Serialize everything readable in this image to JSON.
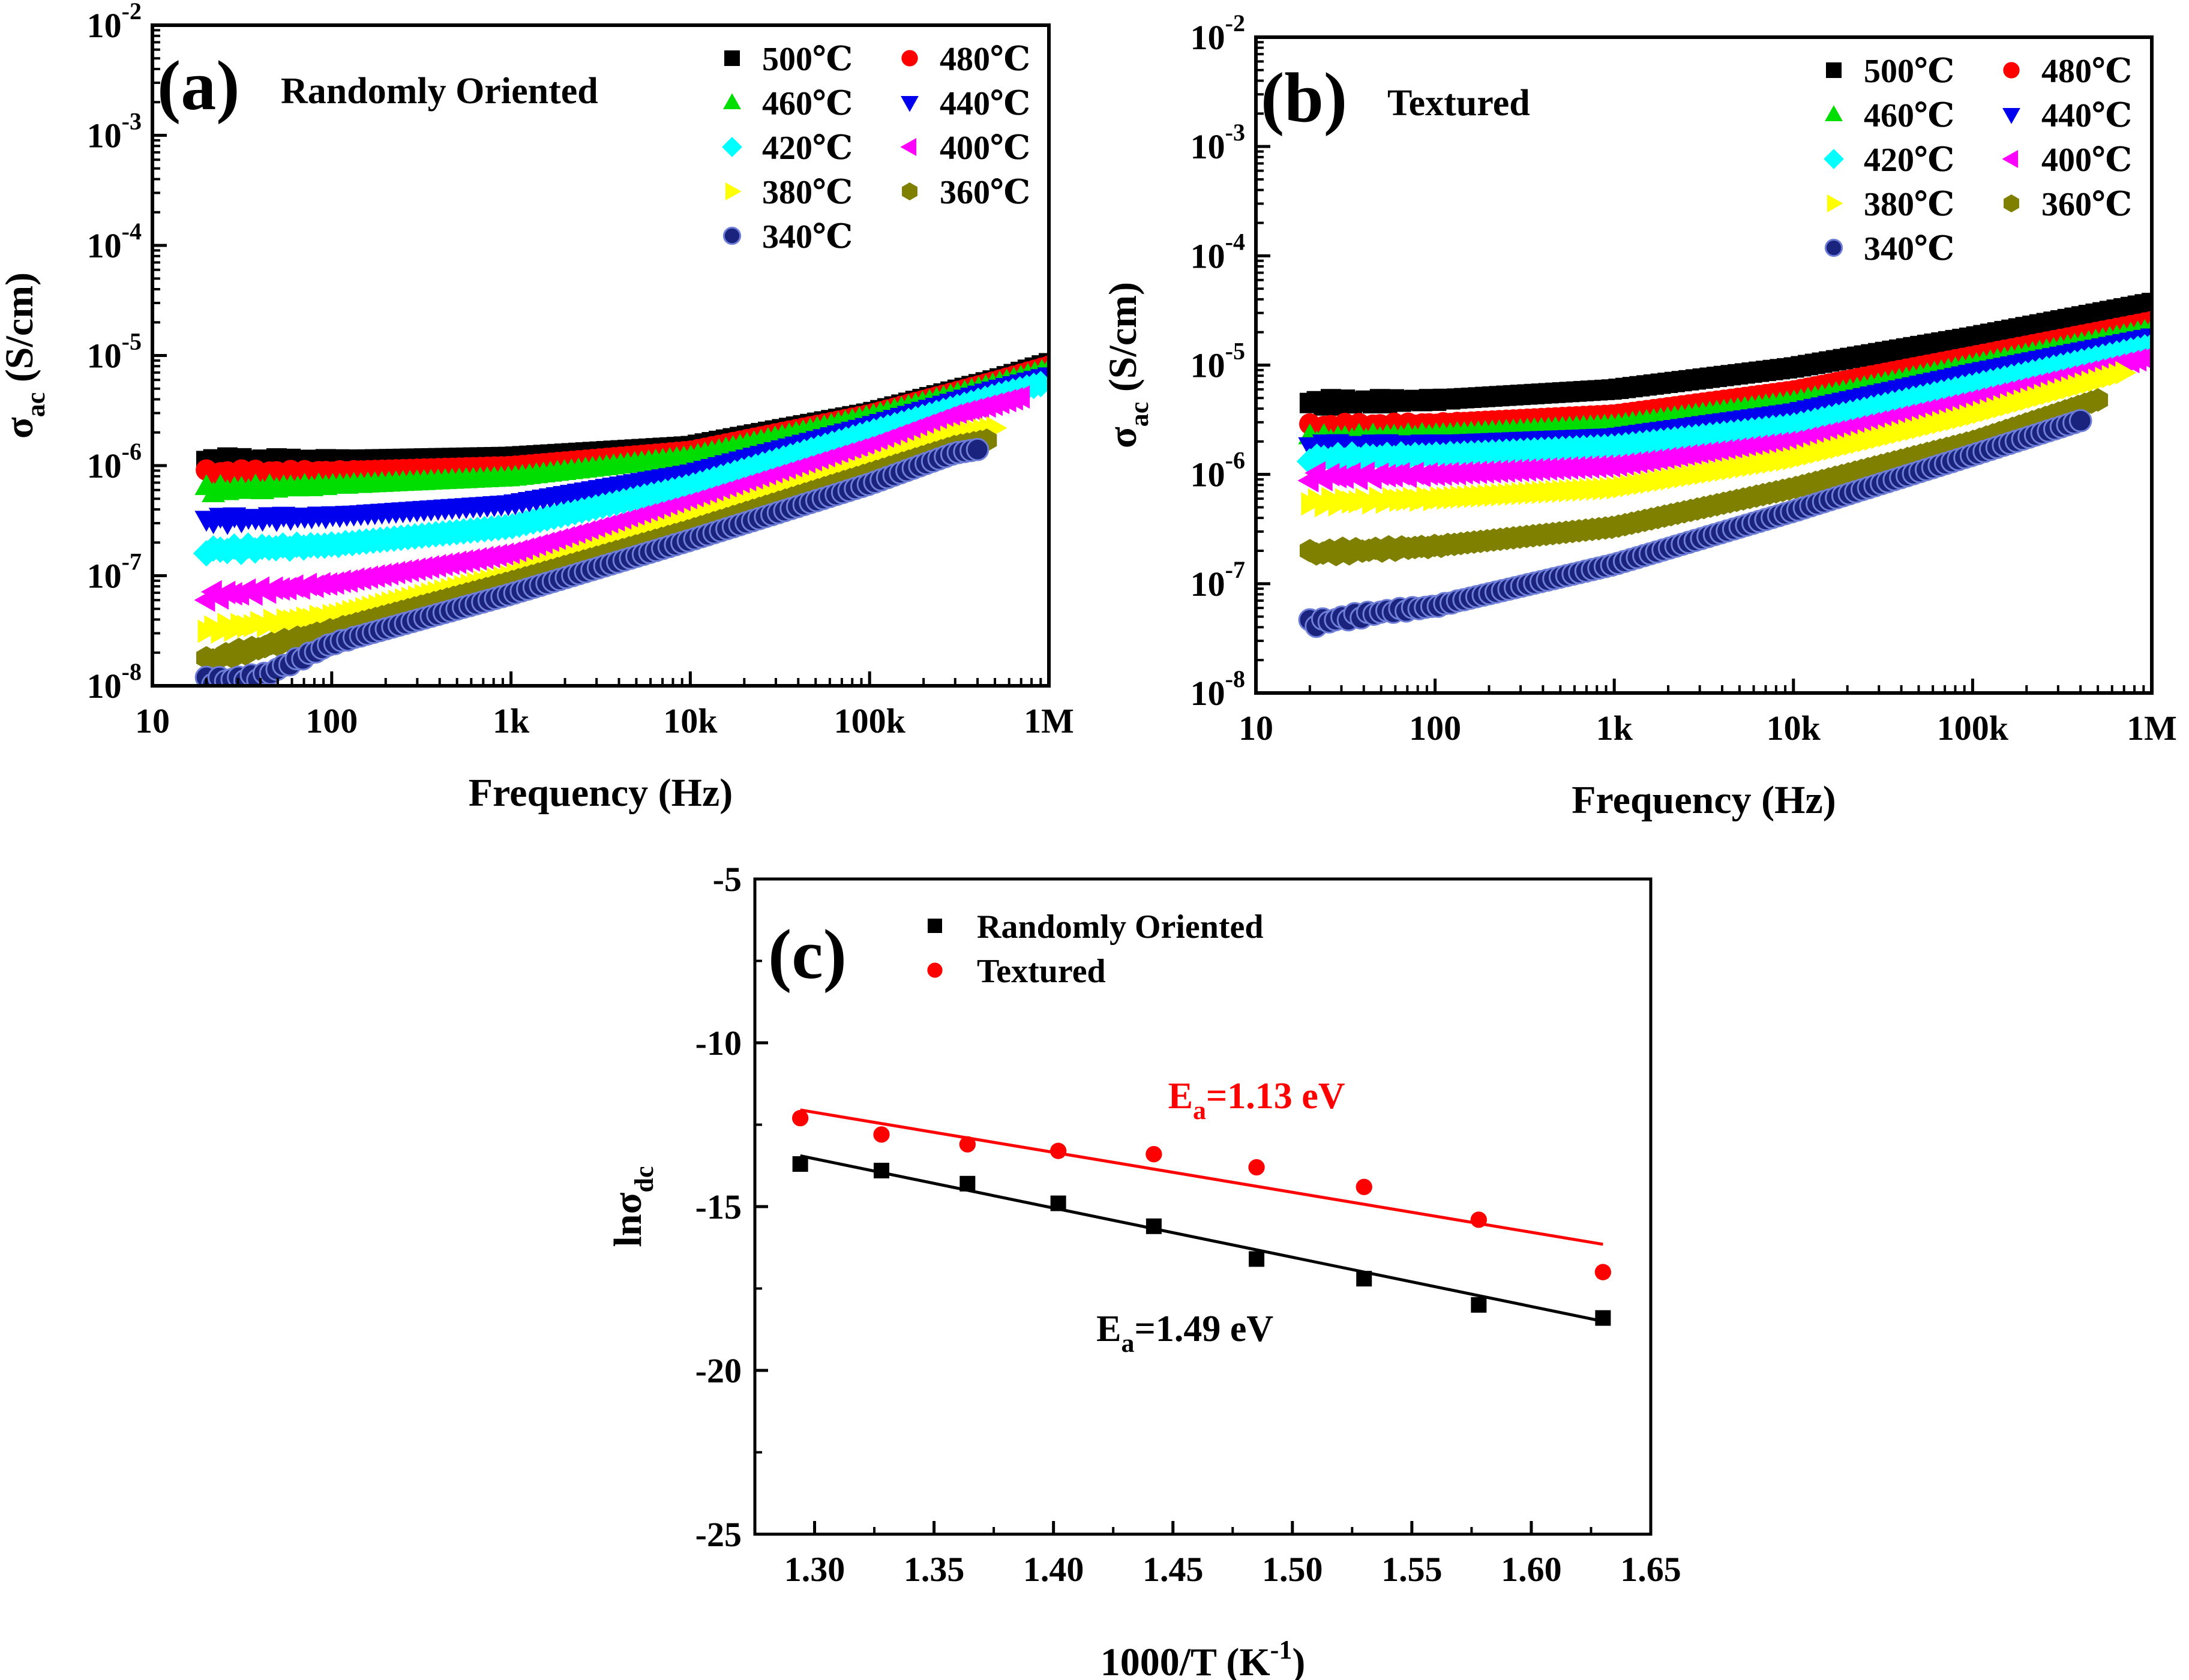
{
  "chart_data": [
    {
      "panel": "a",
      "type": "scatter",
      "panel_label": "(a)",
      "title": "Randomly Oriented",
      "xlabel": "Frequency (Hz)",
      "ylabel": "σac (S/cm)",
      "ylabel_main": "σ",
      "ylabel_sub": "ac",
      "ylabel_rest": " (S/cm)",
      "x_scale": "log",
      "y_scale": "log",
      "xlim": [
        10,
        1000000
      ],
      "ylim": [
        1e-08,
        0.01
      ],
      "x_ticks": [
        {
          "value": 10,
          "label": "10"
        },
        {
          "value": 100,
          "label": "100"
        },
        {
          "value": 1000,
          "label": "1k"
        },
        {
          "value": 10000,
          "label": "10k"
        },
        {
          "value": 100000,
          "label": "100k"
        },
        {
          "value": 1000000,
          "label": "1M"
        }
      ],
      "y_ticks": [
        {
          "value": 1e-08,
          "exp": "-8"
        },
        {
          "value": 1e-07,
          "exp": "-7"
        },
        {
          "value": 1e-06,
          "exp": "-6"
        },
        {
          "value": 1e-05,
          "exp": "-5"
        },
        {
          "value": 0.0001,
          "exp": "-4"
        },
        {
          "value": 0.001,
          "exp": "-3"
        },
        {
          "value": 0.01,
          "exp": "-2"
        }
      ],
      "legend_position": "top-right",
      "series": [
        {
          "name": "500℃",
          "color": "#000000",
          "marker": "square",
          "points": [
            [
              20,
              1.1e-06
            ],
            [
              100,
              1.12e-06
            ],
            [
              1000,
              1.2e-06
            ],
            [
              10000,
              1.5e-06
            ],
            [
              100000,
              3e-06
            ],
            [
              500000,
              6e-06
            ],
            [
              1000000,
              8.5e-06
            ]
          ]
        },
        {
          "name": "480℃",
          "color": "#ff0000",
          "marker": "circle",
          "points": [
            [
              20,
              8.5e-07
            ],
            [
              100,
              8.8e-07
            ],
            [
              1000,
              9.8e-07
            ],
            [
              10000,
              1.35e-06
            ],
            [
              100000,
              2.9e-06
            ],
            [
              500000,
              5.8e-06
            ],
            [
              1000000,
              8e-06
            ]
          ]
        },
        {
          "name": "460℃",
          "color": "#00dd00",
          "marker": "triangle-up",
          "points": [
            [
              20,
              6e-07
            ],
            [
              100,
              6.6e-07
            ],
            [
              1000,
              7.8e-07
            ],
            [
              10000,
              1.2e-06
            ],
            [
              100000,
              2.8e-06
            ],
            [
              500000,
              5.5e-06
            ],
            [
              1000000,
              7.5e-06
            ]
          ]
        },
        {
          "name": "440℃",
          "color": "#0000ee",
          "marker": "triangle-down",
          "points": [
            [
              20,
              3.2e-07
            ],
            [
              100,
              3.5e-07
            ],
            [
              1000,
              4.5e-07
            ],
            [
              10000,
              8.5e-07
            ],
            [
              100000,
              2.3e-06
            ],
            [
              500000,
              4.9e-06
            ],
            [
              1000000,
              6.5e-06
            ]
          ]
        },
        {
          "name": "420℃",
          "color": "#00ffff",
          "marker": "diamond",
          "points": [
            [
              20,
              1.7e-07
            ],
            [
              100,
              1.9e-07
            ],
            [
              1000,
              2.8e-07
            ],
            [
              10000,
              6.5e-07
            ],
            [
              100000,
              2e-06
            ],
            [
              500000,
              4.3e-06
            ],
            [
              900000,
              5.5e-06
            ]
          ]
        },
        {
          "name": "400℃",
          "color": "#ff00ff",
          "marker": "triangle-left",
          "points": [
            [
              20,
              6.5e-08
            ],
            [
              100,
              8.5e-08
            ],
            [
              1000,
              1.6e-07
            ],
            [
              10000,
              4.6e-07
            ],
            [
              100000,
              1.5e-06
            ],
            [
              300000,
              2.9e-06
            ],
            [
              700000,
              4.2e-06
            ]
          ]
        },
        {
          "name": "380℃",
          "color": "#ffff00",
          "marker": "triangle-right",
          "points": [
            [
              20,
              3.2e-08
            ],
            [
              100,
              4.3e-08
            ],
            [
              1000,
              1e-07
            ],
            [
              10000,
              3.2e-07
            ],
            [
              100000,
              1e-06
            ],
            [
              300000,
              1.9e-06
            ],
            [
              500000,
              2.2e-06
            ]
          ]
        },
        {
          "name": "360℃",
          "color": "#808000",
          "marker": "hexagon",
          "points": [
            [
              20,
              1.7e-08
            ],
            [
              100,
              3.2e-08
            ],
            [
              1000,
              8.8e-08
            ],
            [
              10000,
              2.6e-07
            ],
            [
              100000,
              8.5e-07
            ],
            [
              300000,
              1.5e-06
            ],
            [
              450000,
              1.7e-06
            ]
          ]
        },
        {
          "name": "340℃",
          "color": "#1a237e",
          "marker": "sphere",
          "points": [
            [
              20,
              1.1e-08
            ],
            [
              40,
              1.2e-08
            ],
            [
              100,
              2.4e-08
            ],
            [
              1000,
              6.8e-08
            ],
            [
              10000,
              2.1e-07
            ],
            [
              100000,
              6.8e-07
            ],
            [
              300000,
              1.3e-06
            ],
            [
              400000,
              1.4e-06
            ]
          ]
        }
      ]
    },
    {
      "panel": "b",
      "type": "scatter",
      "panel_label": "(b)",
      "title": "Textured",
      "xlabel": "Frequency (Hz)",
      "ylabel": "σac (S/cm)",
      "ylabel_main": "σ",
      "ylabel_sub": "ac",
      "ylabel_rest": " (S/cm)",
      "x_scale": "log",
      "y_scale": "log",
      "xlim": [
        10,
        1000000
      ],
      "ylim": [
        1e-08,
        0.01
      ],
      "x_ticks": [
        {
          "value": 10,
          "label": "10"
        },
        {
          "value": 100,
          "label": "100"
        },
        {
          "value": 1000,
          "label": "1k"
        },
        {
          "value": 10000,
          "label": "10k"
        },
        {
          "value": 100000,
          "label": "100k"
        },
        {
          "value": 1000000,
          "label": "1M"
        }
      ],
      "y_ticks": [
        {
          "value": 1e-08,
          "exp": "-8"
        },
        {
          "value": 1e-07,
          "exp": "-7"
        },
        {
          "value": 1e-06,
          "exp": "-6"
        },
        {
          "value": 1e-05,
          "exp": "-5"
        },
        {
          "value": 0.0001,
          "exp": "-4"
        },
        {
          "value": 0.001,
          "exp": "-3"
        },
        {
          "value": 0.01,
          "exp": "-2"
        }
      ],
      "legend_position": "top-right",
      "series": [
        {
          "name": "500℃",
          "color": "#000000",
          "marker": "square",
          "points": [
            [
              20,
              4.5e-06
            ],
            [
              100,
              4.8e-06
            ],
            [
              1000,
              6e-06
            ],
            [
              10000,
              9.5e-06
            ],
            [
              100000,
              1.8e-05
            ],
            [
              1000000,
              3.7e-05
            ]
          ]
        },
        {
          "name": "480℃",
          "color": "#ff0000",
          "marker": "circle",
          "points": [
            [
              20,
              2.7e-06
            ],
            [
              100,
              2.9e-06
            ],
            [
              1000,
              3.5e-06
            ],
            [
              10000,
              5.8e-06
            ],
            [
              100000,
              1.2e-05
            ],
            [
              1000000,
              2.5e-05
            ]
          ]
        },
        {
          "name": "460℃",
          "color": "#00dd00",
          "marker": "triangle-up",
          "points": [
            [
              20,
              2.1e-06
            ],
            [
              100,
              2.3e-06
            ],
            [
              1000,
              2.8e-06
            ],
            [
              10000,
              4.6e-06
            ],
            [
              100000,
              1e-05
            ],
            [
              1000000,
              2.1e-05
            ]
          ]
        },
        {
          "name": "440℃",
          "color": "#0000ee",
          "marker": "triangle-down",
          "points": [
            [
              20,
              1.8e-06
            ],
            [
              100,
              1.9e-06
            ],
            [
              1000,
              2.2e-06
            ],
            [
              10000,
              3.7e-06
            ],
            [
              100000,
              8.5e-06
            ],
            [
              1000000,
              1.8e-05
            ]
          ]
        },
        {
          "name": "420℃",
          "color": "#00ffff",
          "marker": "diamond",
          "points": [
            [
              20,
              1.4e-06
            ],
            [
              100,
              1.5e-06
            ],
            [
              1000,
              1.8e-06
            ],
            [
              10000,
              2.8e-06
            ],
            [
              100000,
              6.5e-06
            ],
            [
              1000000,
              1.5e-05
            ]
          ]
        },
        {
          "name": "400℃",
          "color": "#ff00ff",
          "marker": "triangle-left",
          "points": [
            [
              20,
              9.5e-07
            ],
            [
              100,
              1e-06
            ],
            [
              1000,
              1.2e-06
            ],
            [
              10000,
              2e-06
            ],
            [
              100000,
              4.8e-06
            ],
            [
              1000000,
              1.2e-05
            ]
          ]
        },
        {
          "name": "380℃",
          "color": "#ffff00",
          "marker": "triangle-right",
          "points": [
            [
              20,
              5.5e-07
            ],
            [
              100,
              6e-07
            ],
            [
              1000,
              7.5e-07
            ],
            [
              10000,
              1.4e-06
            ],
            [
              100000,
              3.5e-06
            ],
            [
              700000,
              8.5e-06
            ]
          ]
        },
        {
          "name": "360℃",
          "color": "#808000",
          "marker": "hexagon",
          "points": [
            [
              20,
              1.9e-07
            ],
            [
              100,
              2.2e-07
            ],
            [
              1000,
              3.3e-07
            ],
            [
              10000,
              7.5e-07
            ],
            [
              100000,
              2e-06
            ],
            [
              500000,
              4.8e-06
            ]
          ]
        },
        {
          "name": "340℃",
          "color": "#1a237e",
          "marker": "sphere",
          "points": [
            [
              20,
              4.3e-08
            ],
            [
              50,
              5.5e-08
            ],
            [
              100,
              6.2e-08
            ],
            [
              1000,
              1.5e-07
            ],
            [
              10000,
              4.6e-07
            ],
            [
              100000,
              1.5e-06
            ],
            [
              400000,
              3.1e-06
            ]
          ]
        }
      ]
    },
    {
      "panel": "c",
      "type": "scatter",
      "panel_label": "(c)",
      "xlabel": "1000/T (K⁻¹)",
      "xlabel_main": "1000/T (K",
      "xlabel_sup": "-1",
      "xlabel_end": ")",
      "ylabel": "lnσdc",
      "ylabel_main": "lnσ",
      "ylabel_sub": "dc",
      "x_scale": "linear",
      "y_scale": "linear",
      "xlim": [
        1.275,
        1.65
      ],
      "ylim": [
        -25,
        -5
      ],
      "x_ticks": [
        {
          "value": 1.3,
          "label": "1.30"
        },
        {
          "value": 1.35,
          "label": "1.35"
        },
        {
          "value": 1.4,
          "label": "1.40"
        },
        {
          "value": 1.45,
          "label": "1.45"
        },
        {
          "value": 1.5,
          "label": "1.50"
        },
        {
          "value": 1.55,
          "label": "1.55"
        },
        {
          "value": 1.6,
          "label": "1.60"
        },
        {
          "value": 1.65,
          "label": "1.65"
        }
      ],
      "y_ticks": [
        {
          "value": -5,
          "label": "-5"
        },
        {
          "value": -10,
          "label": "-10"
        },
        {
          "value": -15,
          "label": "-15"
        },
        {
          "value": -20,
          "label": "-20"
        },
        {
          "value": -25,
          "label": "-25"
        }
      ],
      "legend_position": "top-left",
      "series": [
        {
          "name": "Randomly Oriented",
          "color": "#000000",
          "marker": "square",
          "x": [
            1.294,
            1.328,
            1.364,
            1.402,
            1.442,
            1.485,
            1.53,
            1.578,
            1.63
          ],
          "y": [
            -13.7,
            -13.9,
            -14.3,
            -14.9,
            -15.6,
            -16.6,
            -17.2,
            -18.0,
            -18.4
          ]
        },
        {
          "name": "Textured",
          "color": "#ff0000",
          "marker": "circle",
          "x": [
            1.294,
            1.328,
            1.364,
            1.402,
            1.442,
            1.485,
            1.53,
            1.578,
            1.63
          ],
          "y": [
            -12.3,
            -12.8,
            -13.1,
            -13.3,
            -13.4,
            -13.8,
            -14.4,
            -15.4,
            -17.0
          ]
        }
      ],
      "fit_lines": [
        {
          "color": "#ff0000",
          "from": [
            1.294,
            -12.05
          ],
          "to": [
            1.63,
            -16.15
          ]
        },
        {
          "color": "#000000",
          "from": [
            1.294,
            -13.45
          ],
          "to": [
            1.63,
            -18.5
          ]
        }
      ],
      "annotations": [
        {
          "main": "E",
          "sub": "a",
          "rest": "=1.13 eV",
          "color": "#ff0000",
          "at": [
            1.485,
            -12.0
          ]
        },
        {
          "main": "E",
          "sub": "a",
          "rest": "=1.49 eV",
          "color": "#000000",
          "at": [
            1.455,
            -19.1
          ]
        }
      ]
    }
  ]
}
